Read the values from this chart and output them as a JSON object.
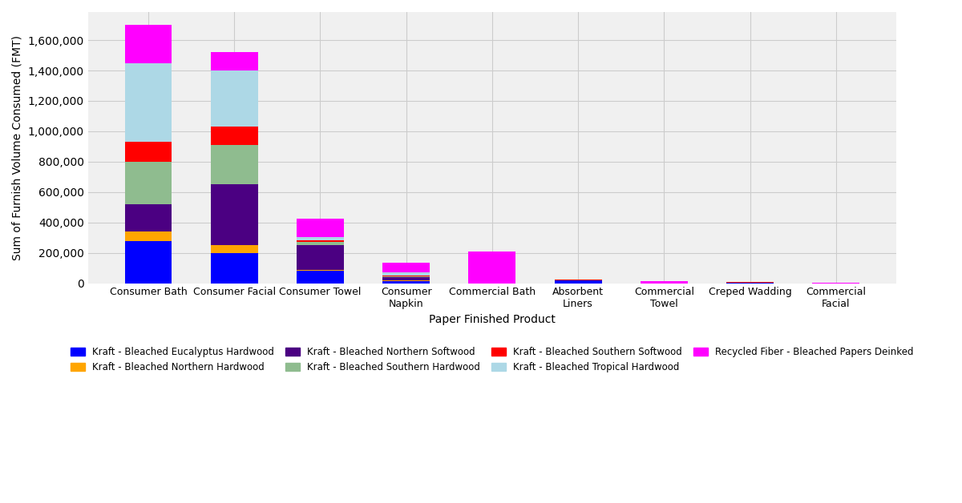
{
  "categories": [
    "Consumer Bath",
    "Consumer Facial",
    "Consumer Towel",
    "Consumer\nNapkin",
    "Commercial Bath",
    "Absorbent\nLiners",
    "Commercial\nTowel",
    "Creped Wadding",
    "Commercial\nFacial"
  ],
  "furnish_types": [
    "Kraft - Bleached Eucalyptus Hardwood",
    "Kraft - Bleached Northern Hardwood",
    "Kraft - Bleached Northern Softwood",
    "Kraft - Bleached Southern Hardwood",
    "Kraft - Bleached Southern Softwood",
    "Kraft - Bleached Tropical Hardwood",
    "Recycled Fiber - Bleached Papers Deinked"
  ],
  "colors": [
    "#0000FF",
    "#FFA500",
    "#4B0082",
    "#8FBC8F",
    "#FF0000",
    "#ADD8E6",
    "#FF00FF"
  ],
  "data": {
    "Kraft - Bleached Eucalyptus Hardwood": [
      280000,
      200000,
      80000,
      15000,
      0,
      20000,
      0,
      3000,
      0
    ],
    "Kraft - Bleached Northern Hardwood": [
      60000,
      50000,
      10000,
      3000,
      0,
      0,
      0,
      0,
      0
    ],
    "Kraft - Bleached Northern Softwood": [
      180000,
      400000,
      160000,
      20000,
      0,
      0,
      0,
      0,
      0
    ],
    "Kraft - Bleached Southern Hardwood": [
      280000,
      260000,
      20000,
      10000,
      0,
      0,
      0,
      0,
      0
    ],
    "Kraft - Bleached Southern Softwood": [
      130000,
      120000,
      15000,
      5000,
      0,
      5000,
      0,
      3000,
      0
    ],
    "Kraft - Bleached Tropical Hardwood": [
      520000,
      370000,
      20000,
      20000,
      0,
      0,
      0,
      0,
      0
    ],
    "Recycled Fiber - Bleached Papers Deinked": [
      250000,
      120000,
      120000,
      60000,
      210000,
      0,
      15000,
      5000,
      5000
    ]
  },
  "ylabel": "Sum of Furnish Volume Consumed (FMT)",
  "xlabel": "Paper Finished Product",
  "background_color": "#F0F0F0",
  "grid_color": "#CCCCCC"
}
